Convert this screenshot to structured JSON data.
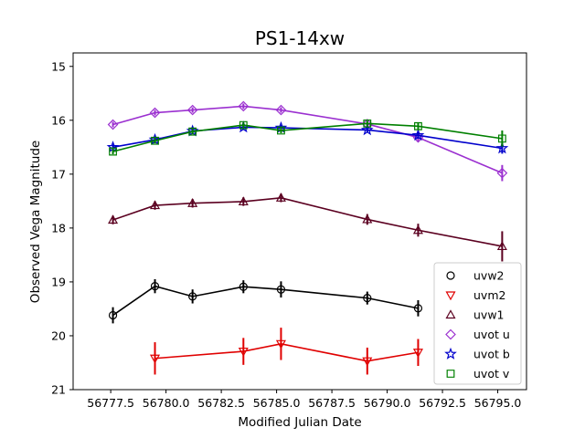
{
  "chart_data": {
    "type": "line",
    "title": "PS1-14xw",
    "xlabel": "Modified Julian Date",
    "ylabel": "Observed Vega Magnitude",
    "xlim": [
      56775.8,
      56796.3
    ],
    "ylim": [
      21,
      14.75
    ],
    "y_inverted": true,
    "xticks": [
      56777.5,
      56780.0,
      56782.5,
      56785.0,
      56787.5,
      56790.0,
      56792.5,
      56795.0
    ],
    "xtick_labels": [
      "56777.5",
      "56780.0",
      "56782.5",
      "56785.0",
      "56787.5",
      "56790.0",
      "56792.5",
      "56795.0"
    ],
    "yticks": [
      15,
      16,
      17,
      18,
      19,
      20,
      21
    ],
    "ytick_labels": [
      "15",
      "16",
      "17",
      "18",
      "19",
      "20",
      "21"
    ],
    "grid": false,
    "legend_position": "lower-right",
    "series": [
      {
        "name": "uvw2",
        "color": "#000000",
        "marker": "circle",
        "x": [
          56777.6,
          56779.5,
          56781.2,
          56783.5,
          56785.2,
          56789.1,
          56791.4
        ],
        "y": [
          19.62,
          19.08,
          19.27,
          19.09,
          19.14,
          19.3,
          19.49
        ],
        "yerr": [
          0.15,
          0.13,
          0.13,
          0.12,
          0.15,
          0.12,
          0.15
        ]
      },
      {
        "name": "uvm2",
        "color": "#e00000",
        "marker": "triangle-down",
        "x": [
          56779.5,
          56783.5,
          56785.2,
          56789.1,
          56791.4
        ],
        "y": [
          20.42,
          20.29,
          20.15,
          20.47,
          20.31
        ],
        "yerr": [
          0.3,
          0.25,
          0.3,
          0.25,
          0.25
        ]
      },
      {
        "name": "uvw1",
        "color": "#5b0020",
        "marker": "triangle-up",
        "x": [
          56777.6,
          56779.5,
          56781.2,
          56783.5,
          56785.2,
          56789.1,
          56791.4,
          56795.2
        ],
        "y": [
          17.85,
          17.58,
          17.54,
          17.51,
          17.44,
          17.84,
          18.04,
          18.34
        ],
        "yerr": [
          0.08,
          0.08,
          0.08,
          0.08,
          0.08,
          0.1,
          0.12,
          0.28
        ]
      },
      {
        "name": "uvot u",
        "color": "#9b30d0",
        "marker": "diamond",
        "x": [
          56777.6,
          56779.5,
          56781.2,
          56783.5,
          56785.2,
          56789.1,
          56791.4,
          56795.2
        ],
        "y": [
          16.08,
          15.86,
          15.81,
          15.74,
          15.81,
          16.07,
          16.32,
          16.98
        ],
        "yerr": [
          0.05,
          0.05,
          0.05,
          0.05,
          0.05,
          0.06,
          0.08,
          0.15
        ]
      },
      {
        "name": "uvot b",
        "color": "#0000cc",
        "marker": "star",
        "x": [
          56777.6,
          56779.5,
          56781.2,
          56783.5,
          56785.2,
          56789.1,
          56791.4,
          56795.2
        ],
        "y": [
          16.5,
          16.36,
          16.2,
          16.13,
          16.14,
          16.18,
          16.28,
          16.52
        ],
        "yerr": [
          0.05,
          0.05,
          0.05,
          0.05,
          0.05,
          0.05,
          0.06,
          0.1
        ]
      },
      {
        "name": "uvot v",
        "color": "#008000",
        "marker": "square",
        "x": [
          56777.6,
          56779.5,
          56781.2,
          56783.5,
          56785.2,
          56789.1,
          56791.4,
          56795.2
        ],
        "y": [
          16.58,
          16.38,
          16.21,
          16.09,
          16.19,
          16.06,
          16.11,
          16.34
        ],
        "yerr": [
          0.05,
          0.05,
          0.05,
          0.05,
          0.05,
          0.05,
          0.06,
          0.15
        ]
      }
    ]
  }
}
